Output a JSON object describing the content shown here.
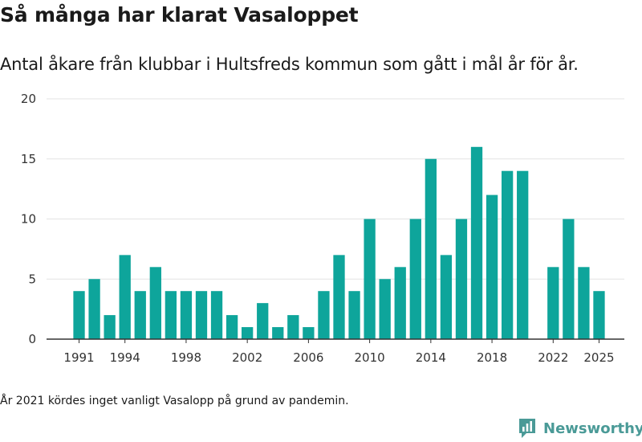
{
  "title": "Så många har klarat Vasaloppet",
  "subtitle": "Antal åkare från klubbar i Hultsfreds kommun som gått i mål år för år.",
  "footnote": "År 2021 kördes inget vanligt Vasalopp på grund av pandemin.",
  "brand": {
    "name": "Newsworthy",
    "icon": "newsworthy-logo-icon",
    "color": "#4a9a97"
  },
  "colors": {
    "bar": "#0ea59b",
    "grid": "#e3e3e3",
    "axis": "#333333"
  },
  "chart_data": {
    "type": "bar",
    "x": [
      1991,
      1992,
      1993,
      1994,
      1995,
      1996,
      1997,
      1998,
      1999,
      2000,
      2001,
      2002,
      2003,
      2004,
      2005,
      2006,
      2007,
      2008,
      2009,
      2010,
      2011,
      2012,
      2013,
      2014,
      2015,
      2016,
      2017,
      2018,
      2019,
      2020,
      2021,
      2022,
      2023,
      2024,
      2025
    ],
    "values": [
      4,
      5,
      2,
      7,
      4,
      6,
      4,
      4,
      4,
      4,
      2,
      1,
      3,
      1,
      2,
      1,
      4,
      7,
      4,
      10,
      5,
      6,
      10,
      15,
      7,
      10,
      16,
      12,
      14,
      14,
      null,
      6,
      10,
      6,
      4
    ],
    "xticks": [
      "1991",
      "1994",
      "1998",
      "2002",
      "2006",
      "2010",
      "2014",
      "2018",
      "2022",
      "2025"
    ],
    "yticks": [
      "0",
      "5",
      "10",
      "15",
      "20"
    ],
    "ylim": [
      0,
      20
    ],
    "xlabel": "",
    "ylabel": "",
    "grid": true
  }
}
